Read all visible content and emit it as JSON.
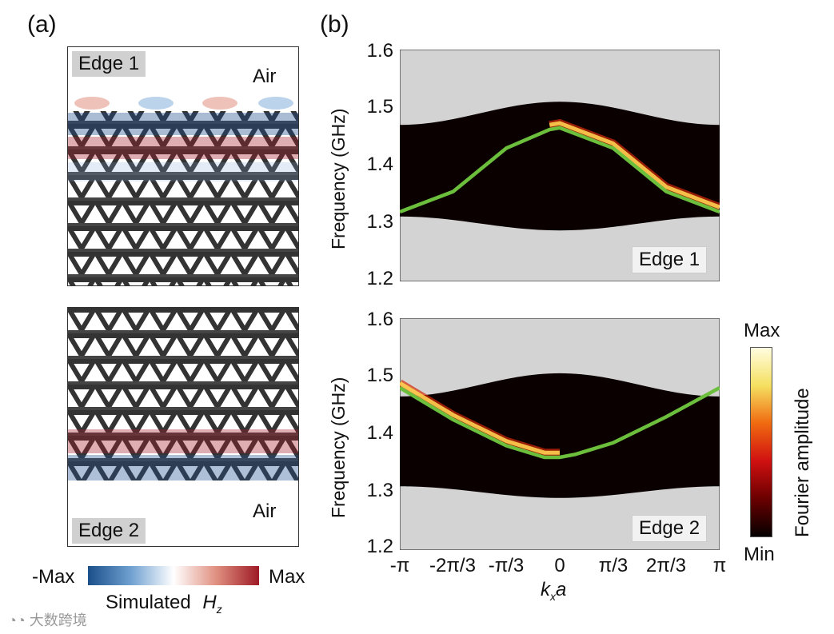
{
  "panel_a": {
    "label": "(a)",
    "top": {
      "tag": "Edge 1",
      "air": "Air"
    },
    "bottom": {
      "tag": "Edge 2",
      "air": "Air"
    },
    "colorbar": {
      "min_label": "-Max",
      "max_label": "Max",
      "caption": "Simulated",
      "caption_var": "H",
      "caption_sub": "z"
    }
  },
  "panel_b": {
    "label": "(b)",
    "ylabel": "Frequency (GHz)",
    "xlabel_main": "k",
    "xlabel_sub": "x",
    "xlabel_tail": "a",
    "yticks": [
      "1.6",
      "1.5",
      "1.4",
      "1.3",
      "1.2"
    ],
    "xticks": [
      "-π",
      "-2π/3",
      "-π/3",
      "0",
      "π/3",
      "2π/3",
      "π"
    ],
    "top_tag": "Edge 1",
    "bottom_tag": "Edge 2",
    "colorbar": {
      "max": "Max",
      "min": "Min",
      "label": "Fourier amplitude"
    }
  },
  "chart_data": [
    {
      "type": "line",
      "title": "Edge 1",
      "xlabel": "kxa",
      "ylabel": "Frequency (GHz)",
      "xlim": [
        -3.1416,
        3.1416
      ],
      "ylim": [
        1.2,
        1.6
      ],
      "series": [
        {
          "name": "edge-mode-dispersion",
          "x": [
            -3.1416,
            -2.0944,
            -1.0472,
            -0.2,
            0,
            1.0472,
            2.0944,
            3.1416
          ],
          "y": [
            1.32,
            1.355,
            1.43,
            1.462,
            1.465,
            1.43,
            1.355,
            1.32
          ]
        }
      ]
    },
    {
      "type": "line",
      "title": "Edge 2",
      "xlabel": "kxa",
      "ylabel": "Frequency (GHz)",
      "xlim": [
        -3.1416,
        3.1416
      ],
      "ylim": [
        1.2,
        1.6
      ],
      "series": [
        {
          "name": "edge-mode-dispersion",
          "x": [
            -3.1416,
            -2.0944,
            -1.0472,
            -0.3,
            0,
            0.3,
            1.0472,
            2.0944,
            3.1416
          ],
          "y": [
            1.48,
            1.425,
            1.38,
            1.36,
            1.36,
            1.365,
            1.385,
            1.43,
            1.48
          ]
        }
      ]
    }
  ],
  "watermark": "大数跨境"
}
